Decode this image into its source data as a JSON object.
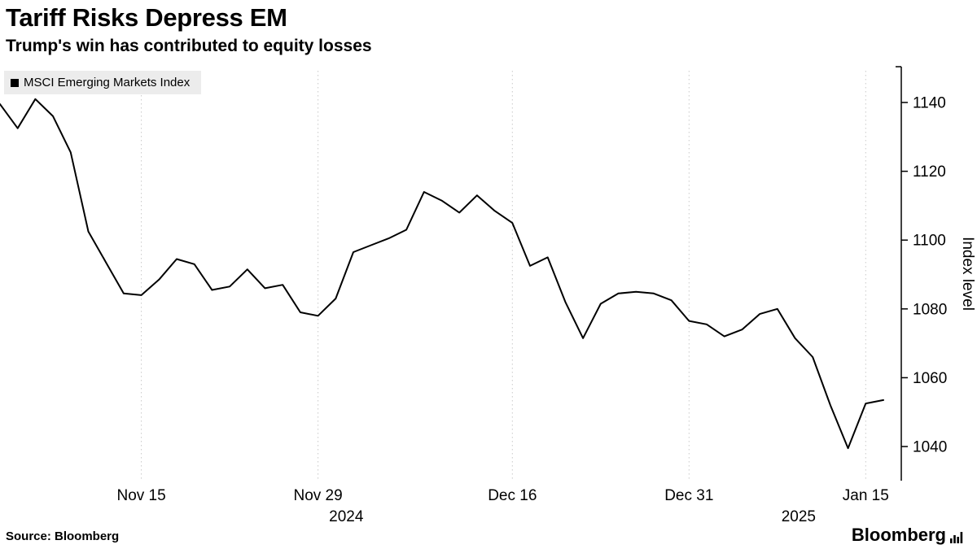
{
  "header": {
    "title": "Tariff Risks Depress EM",
    "subtitle": "Trump's win has contributed to equity losses"
  },
  "legend": {
    "label": "MSCI Emerging Markets Index",
    "marker_color": "#000000"
  },
  "chart_data": {
    "type": "line",
    "series_name": "MSCI Emerging Markets Index",
    "line_color": "#000000",
    "grid_color": "#c9c9c9",
    "ylabel": "Index level",
    "ylim": [
      1030,
      1150
    ],
    "yticks": [
      1140,
      1120,
      1100,
      1080,
      1060,
      1040
    ],
    "xticks": [
      {
        "label": "Nov 15",
        "index": 8
      },
      {
        "label": "Nov 29",
        "index": 18
      },
      {
        "label": "Dec 16",
        "index": 29
      },
      {
        "label": "Dec 31",
        "index": 39
      },
      {
        "label": "Jan 15",
        "index": 49
      }
    ],
    "year_labels": [
      {
        "label": "2024",
        "index": 19.6
      },
      {
        "label": "2025",
        "index": 45.2
      }
    ],
    "dates": [
      "2024-11-05",
      "2024-11-06",
      "2024-11-07",
      "2024-11-08",
      "2024-11-11",
      "2024-11-12",
      "2024-11-13",
      "2024-11-14",
      "2024-11-15",
      "2024-11-18",
      "2024-11-19",
      "2024-11-20",
      "2024-11-21",
      "2024-11-22",
      "2024-11-25",
      "2024-11-26",
      "2024-11-27",
      "2024-11-28",
      "2024-11-29",
      "2024-12-02",
      "2024-12-03",
      "2024-12-04",
      "2024-12-05",
      "2024-12-06",
      "2024-12-09",
      "2024-12-10",
      "2024-12-11",
      "2024-12-12",
      "2024-12-13",
      "2024-12-16",
      "2024-12-17",
      "2024-12-18",
      "2024-12-19",
      "2024-12-20",
      "2024-12-23",
      "2024-12-24",
      "2024-12-26",
      "2024-12-27",
      "2024-12-30",
      "2024-12-31",
      "2025-01-02",
      "2025-01-03",
      "2025-01-06",
      "2025-01-07",
      "2025-01-08",
      "2025-01-09",
      "2025-01-10",
      "2025-01-13",
      "2025-01-14",
      "2025-01-15",
      "2025-01-16"
    ],
    "values": [
      1139.5,
      1132.5,
      1141,
      1136,
      1125.5,
      1102.5,
      1093.5,
      1084.5,
      1084,
      1088.5,
      1094.5,
      1093,
      1085.5,
      1086.5,
      1091.5,
      1086,
      1087,
      1079,
      1078,
      1083,
      1096.5,
      1098.5,
      1100.5,
      1103,
      1114,
      1111.5,
      1108,
      1113,
      1108.5,
      1105,
      1092.5,
      1095,
      1082,
      1071.5,
      1081.5,
      1084.5,
      1085,
      1084.5,
      1082.5,
      1076.5,
      1075.5,
      1072,
      1074,
      1078.5,
      1080,
      1071.5,
      1066,
      1052,
      1039.5,
      1052.5,
      1053.5
    ]
  },
  "footer": {
    "source": "Source: Bloomberg",
    "brand": "Bloomberg",
    "brand_icon": "chart-bars-icon"
  }
}
